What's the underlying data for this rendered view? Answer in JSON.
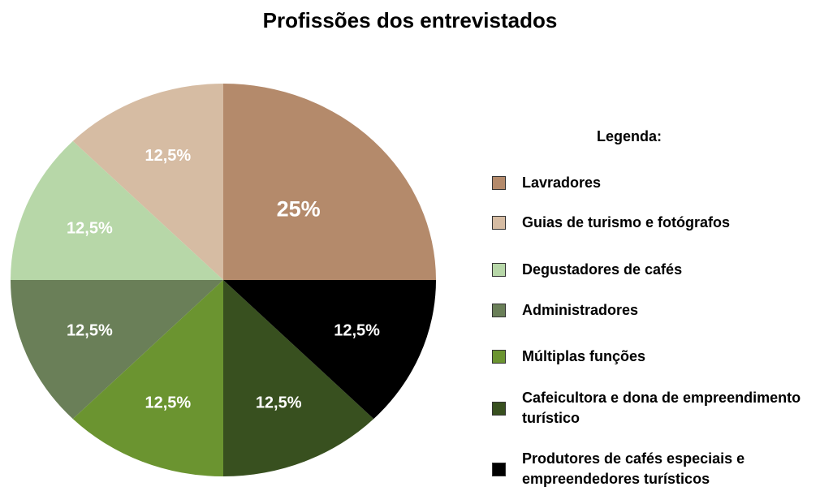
{
  "chart_data": {
    "type": "pie",
    "title": "Profissões dos entrevistados",
    "legend_title": "Legenda:",
    "categories": [
      "Lavradores",
      "Guias de turismo e fotógrafos",
      "Degustadores de cafés",
      "Administradores",
      "Múltiplas funções",
      "Cafeicultora e dona de empreendimento turístico",
      "Produtores de cafés especiais e empreendedores turísticos"
    ],
    "values": [
      25,
      12.5,
      12.5,
      12.5,
      12.5,
      12.5,
      12.5
    ],
    "value_labels": [
      "25%",
      "12,5%",
      "12,5%",
      "12,5%",
      "12,5%",
      "12,5%",
      "12,5%"
    ],
    "colors": [
      "#b48a6b",
      "#d6bca3",
      "#b7d7a8",
      "#6a7f58",
      "#6b9430",
      "#38501f",
      "#000000"
    ],
    "legend": "right"
  }
}
